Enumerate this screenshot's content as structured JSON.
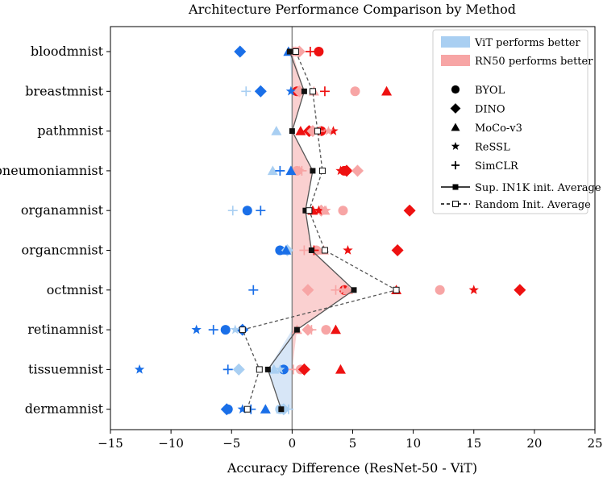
{
  "chart_data": {
    "type": "scatter",
    "title": "Architecture Performance Comparison by Method",
    "xlabel": "Accuracy Difference (ResNet-50 - ViT)",
    "ylabel": "",
    "xlim": [
      -15,
      25
    ],
    "xticks": [
      -15,
      -10,
      -5,
      0,
      5,
      10,
      15,
      20,
      25
    ],
    "xtick_labels": [
      "−15",
      "−10",
      "−5",
      "0",
      "5",
      "10",
      "15",
      "20",
      "25"
    ],
    "categories": [
      "bloodmnist",
      "breastmnist",
      "pathmnist",
      "pneumoniamnist",
      "organamnist",
      "organcmnist",
      "octmnist",
      "retinamnist",
      "tissuemnist",
      "dermamnist"
    ],
    "colors": {
      "vit_dark": "#1a6fe8",
      "vit_light": "#a9cff2",
      "rn_dark": "#ee1111",
      "rn_light": "#f7a5a5",
      "vit_fill": "#d7e6f7",
      "rn_fill": "#fad0d0",
      "avg_line": "#555555"
    },
    "legend": {
      "position": "top-right",
      "vit_better": "ViT performs better",
      "rn_better": "RN50 performs better",
      "methods": [
        {
          "name": "BYOL",
          "marker": "circle"
        },
        {
          "name": "DINO",
          "marker": "diamond"
        },
        {
          "name": "MoCo-v3",
          "marker": "triangle"
        },
        {
          "name": "ReSSL",
          "marker": "star"
        },
        {
          "name": "SimCLR",
          "marker": "plus"
        }
      ],
      "sup_avg": "Sup. IN1K init. Average",
      "rand_avg": "Random Init. Average"
    },
    "series": [
      {
        "method": "BYOL",
        "marker": "circle",
        "init": "sup",
        "values": [
          2.2,
          0.4,
          2.4,
          4.3,
          -3.7,
          -1.0,
          4.3,
          -5.5,
          -0.7,
          -5.3
        ]
      },
      {
        "method": "BYOL",
        "marker": "circle",
        "init": "random",
        "values": [
          0.3,
          5.2,
          1.6,
          0.4,
          4.2,
          2.0,
          12.2,
          2.8,
          0.7,
          -1.0
        ]
      },
      {
        "method": "DINO",
        "marker": "diamond",
        "init": "sup",
        "values": [
          -4.3,
          -2.6,
          1.4,
          4.5,
          9.7,
          8.7,
          18.8,
          -4.1,
          1.0,
          -5.4
        ]
      },
      {
        "method": "DINO",
        "marker": "diamond",
        "init": "random",
        "values": [
          0.6,
          0.6,
          1.7,
          5.4,
          2.4,
          -0.4,
          1.3,
          1.3,
          -4.4,
          -0.7
        ]
      },
      {
        "method": "MoCo-v3",
        "marker": "triangle",
        "init": "sup",
        "values": [
          -0.3,
          7.8,
          0.7,
          -0.1,
          1.7,
          -0.5,
          8.6,
          3.6,
          4.0,
          -2.2
        ]
      },
      {
        "method": "MoCo-v3",
        "marker": "triangle",
        "init": "random",
        "values": [
          0.3,
          1.8,
          -1.3,
          -1.6,
          2.7,
          2.6,
          4.6,
          0.4,
          -1.5,
          -0.9
        ]
      },
      {
        "method": "ReSSL",
        "marker": "star",
        "init": "sup",
        "values": [
          0.1,
          -0.1,
          3.4,
          4.0,
          2.2,
          4.6,
          15.0,
          -7.9,
          -12.6,
          -4.1
        ]
      },
      {
        "method": "ReSSL",
        "marker": "star",
        "init": "random",
        "values": [
          0.1,
          0.6,
          3.0,
          0.6,
          2.8,
          2.6,
          4.2,
          -4.7,
          -1.0,
          -0.8
        ]
      },
      {
        "method": "SimCLR",
        "marker": "plus",
        "init": "sup",
        "values": [
          1.5,
          2.7,
          2.4,
          -1.0,
          -2.6,
          1.8,
          -3.2,
          -6.5,
          -5.3,
          -3.4
        ]
      },
      {
        "method": "SimCLR",
        "marker": "plus",
        "init": "random",
        "values": [
          0.5,
          -3.8,
          2.3,
          0.8,
          -4.9,
          1.0,
          3.6,
          1.6,
          0.1,
          -0.3
        ]
      }
    ],
    "sup_avg": [
      -0.2,
      1.0,
      0.0,
      1.7,
      1.1,
      1.6,
      5.1,
      0.4,
      -2.0,
      -0.9
    ],
    "rand_avg": [
      0.3,
      1.7,
      2.1,
      2.5,
      1.4,
      2.7,
      8.6,
      -4.1,
      -2.7,
      -3.7
    ]
  }
}
